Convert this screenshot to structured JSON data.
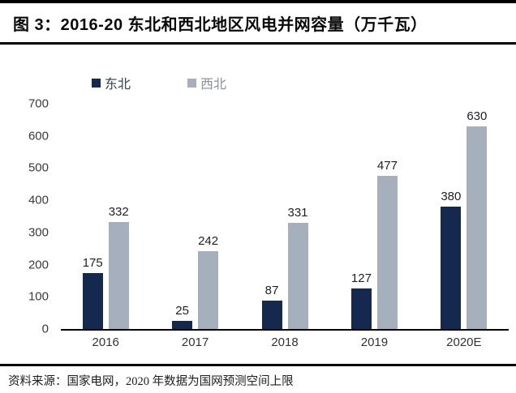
{
  "title_bar": {
    "title": "图 3：2016-20 东北和西北地区风电并网容量（万千瓦）"
  },
  "footer": {
    "source": "资料来源：国家电网，2020 年数据为国网预测空间上限"
  },
  "chart_data": {
    "type": "bar",
    "title": "2016-20 东北和西北地区风电并网容量（万千瓦）",
    "categories": [
      "2016",
      "2017",
      "2018",
      "2019",
      "2020E"
    ],
    "series": [
      {
        "name": "东北",
        "color": "#14294d",
        "values": [
          175,
          25,
          87,
          127,
          380
        ]
      },
      {
        "name": "西北",
        "color": "#a5b0bc",
        "values": [
          332,
          242,
          331,
          477,
          630
        ]
      }
    ],
    "ylim": [
      0,
      700
    ],
    "ytick_step": 100,
    "grid": false,
    "legend_position": "top-left",
    "xlabel": "",
    "ylabel": ""
  }
}
